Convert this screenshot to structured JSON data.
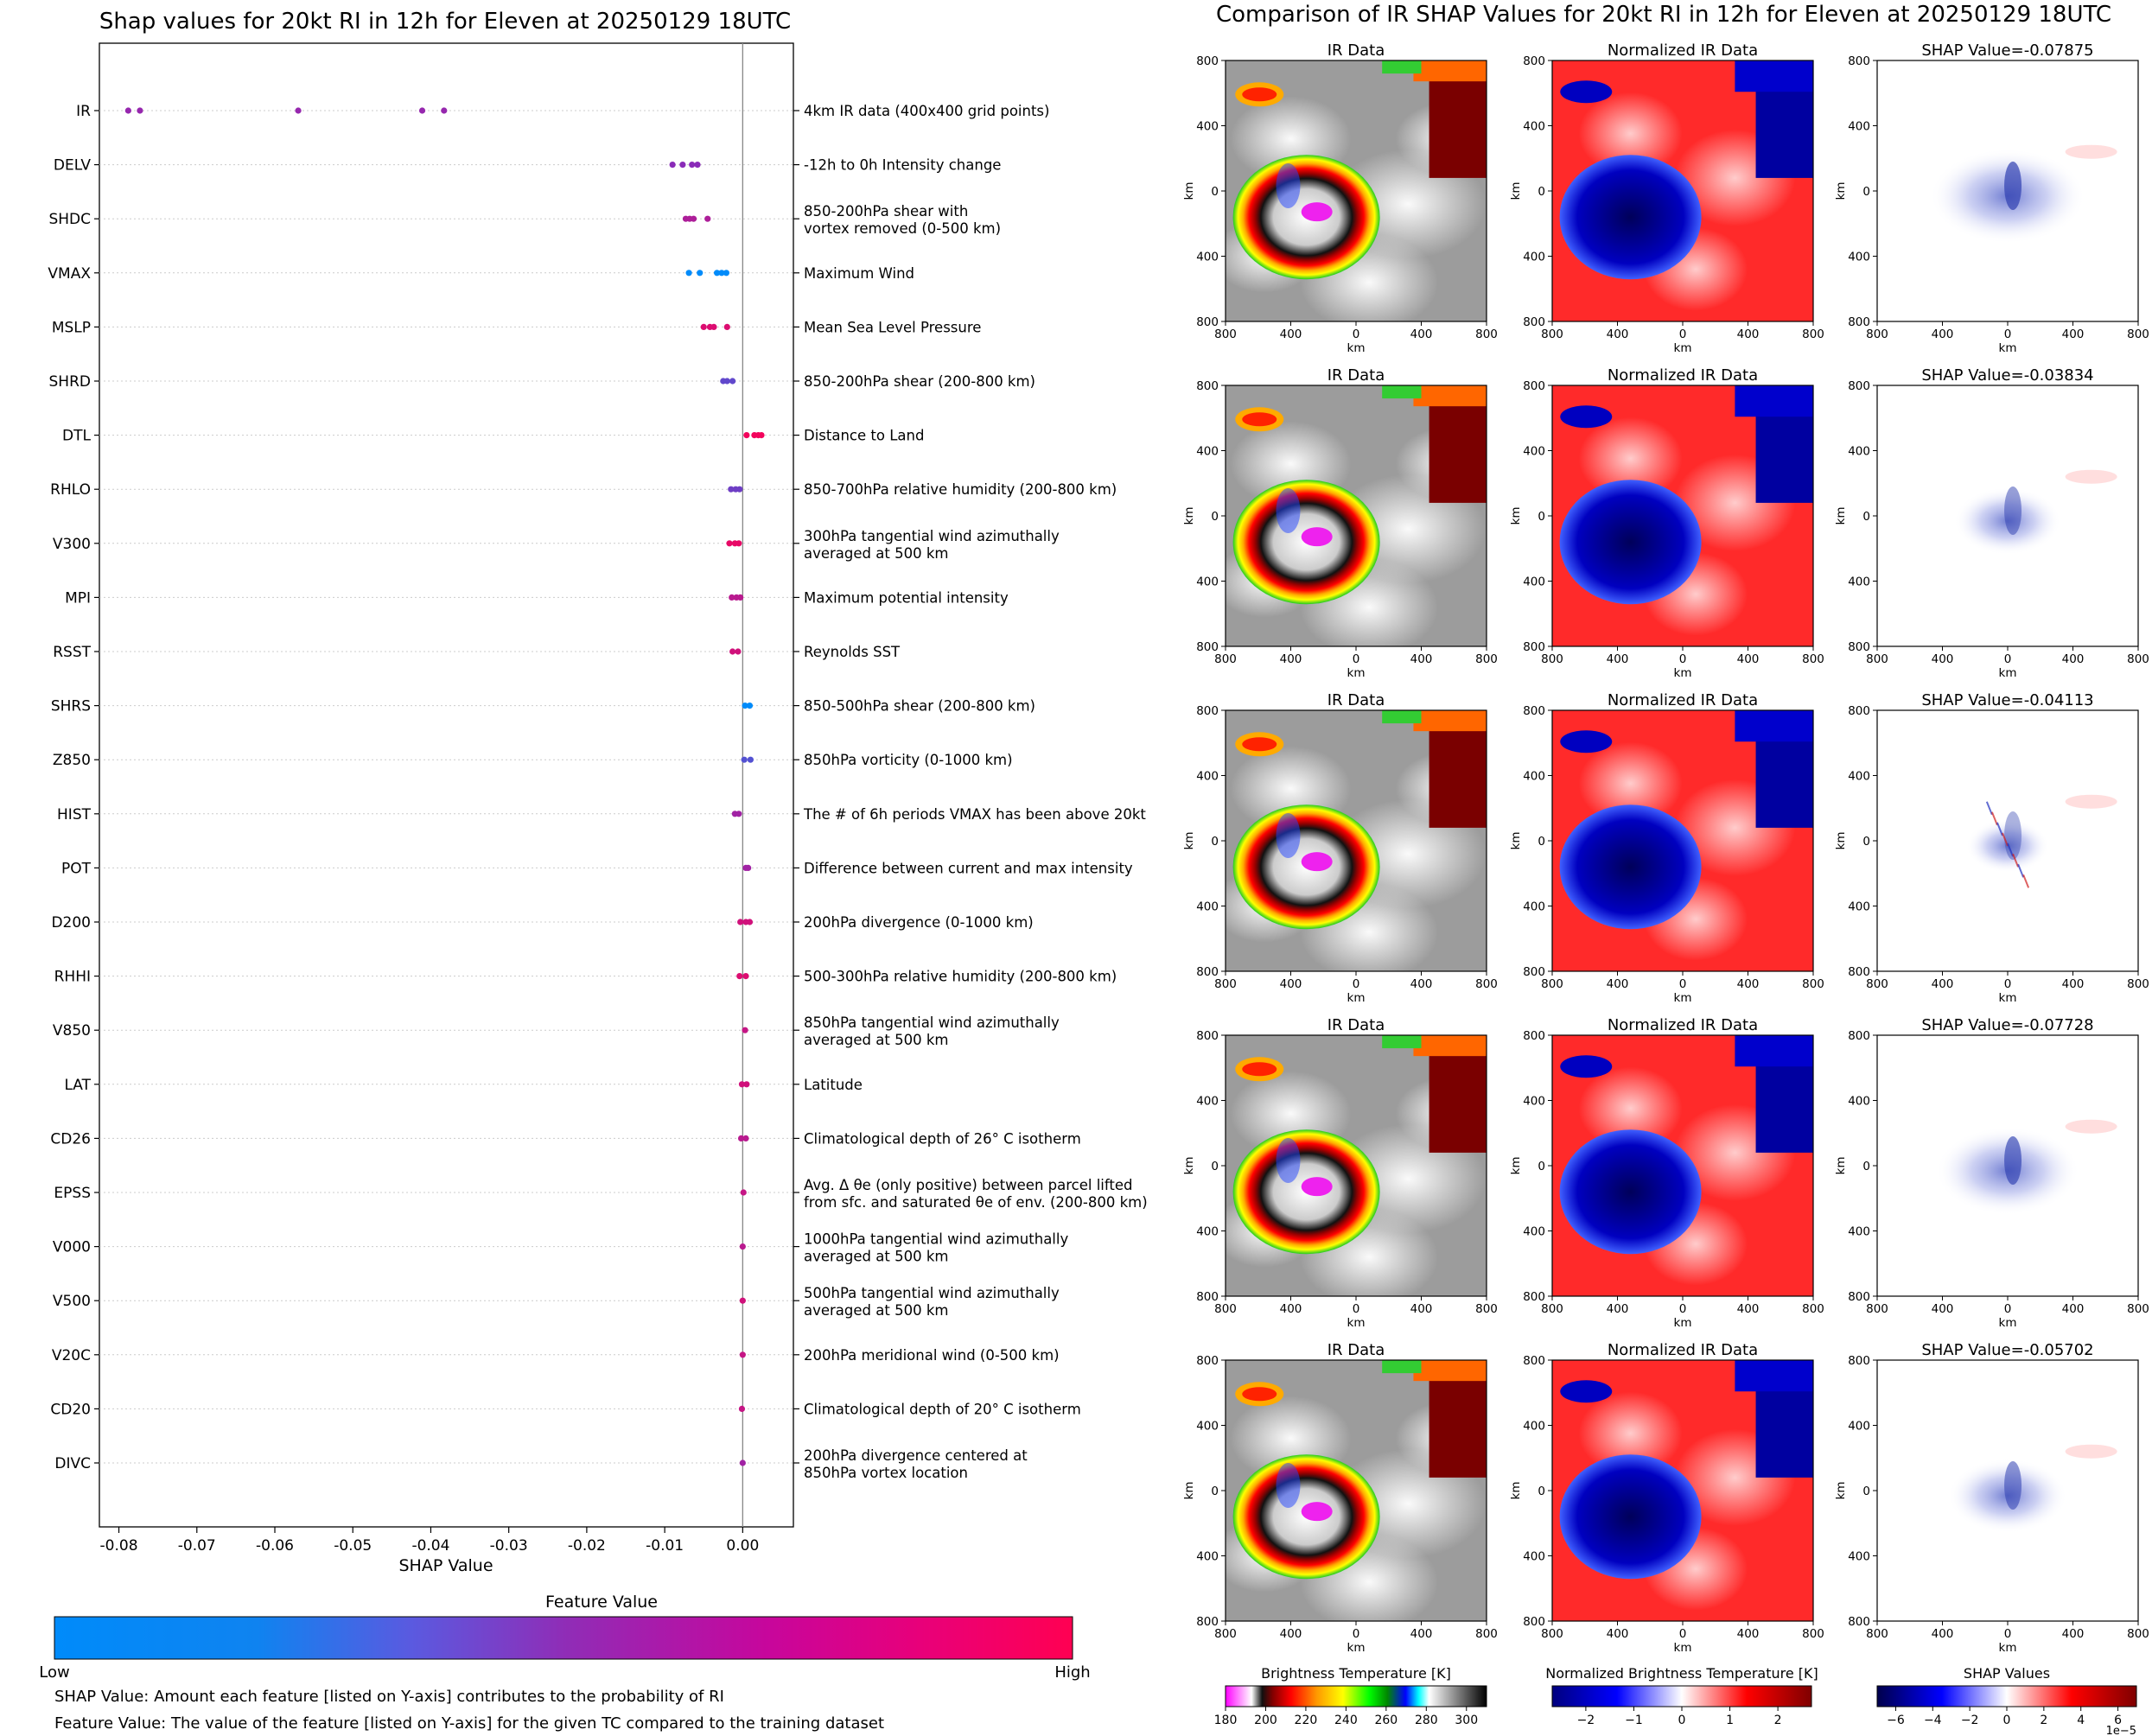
{
  "left_title": "Shap values for 20kt RI in 12h for Eleven at 20250129 18UTC",
  "right_title": "Comparison of IR SHAP Values for 20kt RI in 12h for Eleven at 20250129 18UTC",
  "colors": {
    "low": "#008bfa",
    "mid": "#8a2bb8",
    "high": "#ff0052"
  },
  "colorbar": {
    "title": "Feature Value",
    "low": "Low",
    "high": "High"
  },
  "notes": [
    "SHAP Value: Amount each feature [listed on Y-axis] contributes to the probability of RI",
    "Feature Value: The value of the feature [listed on Y-axis] for the given TC compared to the training dataset"
  ],
  "chart_data": [
    {
      "type": "scatter",
      "title": "Shap values for 20kt RI in 12h for Eleven at 20250129 18UTC",
      "xlabel": "SHAP Value",
      "xlim": [
        -0.0825,
        0.0065
      ],
      "xticks": [
        "-0.08",
        "-0.07",
        "-0.06",
        "-0.05",
        "-0.04",
        "-0.03",
        "-0.02",
        "-0.01",
        "0.00"
      ],
      "xtick_values": [
        -0.08,
        -0.07,
        -0.06,
        -0.05,
        -0.04,
        -0.03,
        -0.02,
        -0.01,
        0.0
      ],
      "features": [
        {
          "name": "IR",
          "desc": [
            "4km IR data (400x400 grid points)"
          ],
          "points": [
            [
              -0.0788,
              0.55
            ],
            [
              -0.0773,
              0.55
            ],
            [
              -0.057,
              0.55
            ],
            [
              -0.0411,
              0.55
            ],
            [
              -0.0383,
              0.55
            ]
          ]
        },
        {
          "name": "DELV",
          "desc": [
            "-12h to 0h Intensity change"
          ],
          "points": [
            [
              -0.009,
              0.5
            ],
            [
              -0.0077,
              0.5
            ],
            [
              -0.0065,
              0.5
            ],
            [
              -0.0058,
              0.5
            ]
          ]
        },
        {
          "name": "SHDC",
          "desc": [
            "850-200hPa shear with",
            "vortex removed (0-500 km)"
          ],
          "points": [
            [
              -0.0073,
              0.65
            ],
            [
              -0.0068,
              0.65
            ],
            [
              -0.0063,
              0.65
            ],
            [
              -0.0045,
              0.65
            ]
          ]
        },
        {
          "name": "VMAX",
          "desc": [
            "Maximum Wind"
          ],
          "points": [
            [
              -0.0069,
              0.0
            ],
            [
              -0.0055,
              0.0
            ],
            [
              -0.0033,
              0.0
            ],
            [
              -0.0027,
              0.0
            ],
            [
              -0.0021,
              0.0
            ]
          ]
        },
        {
          "name": "MSLP",
          "desc": [
            "Mean Sea Level Pressure"
          ],
          "points": [
            [
              -0.005,
              0.85
            ],
            [
              -0.0042,
              0.85
            ],
            [
              -0.0037,
              0.85
            ],
            [
              -0.002,
              0.85
            ]
          ]
        },
        {
          "name": "SHRD",
          "desc": [
            "850-200hPa shear (200-800 km)"
          ],
          "points": [
            [
              -0.0025,
              0.35
            ],
            [
              -0.002,
              0.35
            ],
            [
              -0.0013,
              0.35
            ]
          ]
        },
        {
          "name": "DTL",
          "desc": [
            "Distance to Land"
          ],
          "points": [
            [
              0.0005,
              0.95
            ],
            [
              0.0015,
              0.95
            ],
            [
              0.002,
              0.95
            ],
            [
              0.0024,
              0.95
            ]
          ]
        },
        {
          "name": "RHLO",
          "desc": [
            "850-700hPa relative humidity (200-800 km)"
          ],
          "points": [
            [
              -0.0015,
              0.4
            ],
            [
              -0.0009,
              0.4
            ],
            [
              -0.0004,
              0.4
            ]
          ]
        },
        {
          "name": "V300",
          "desc": [
            "300hPa tangential wind azimuthally",
            "averaged at 500 km"
          ],
          "points": [
            [
              -0.0017,
              0.9
            ],
            [
              -0.001,
              0.9
            ],
            [
              -0.0005,
              0.9
            ]
          ]
        },
        {
          "name": "MPI",
          "desc": [
            "Maximum potential intensity"
          ],
          "points": [
            [
              -0.0014,
              0.7
            ],
            [
              -0.0008,
              0.7
            ],
            [
              -0.0003,
              0.7
            ]
          ]
        },
        {
          "name": "RSST",
          "desc": [
            "Reynolds SST"
          ],
          "points": [
            [
              -0.0013,
              0.8
            ],
            [
              -0.0006,
              0.8
            ]
          ]
        },
        {
          "name": "SHRS",
          "desc": [
            "850-500hPa shear (200-800 km)"
          ],
          "points": [
            [
              0.0003,
              0.0
            ],
            [
              0.0009,
              0.0
            ]
          ]
        },
        {
          "name": "Z850",
          "desc": [
            "850hPa vorticity (0-1000 km)"
          ],
          "points": [
            [
              0.0002,
              0.3
            ],
            [
              0.001,
              0.3
            ]
          ]
        },
        {
          "name": "HIST",
          "desc": [
            "The # of 6h periods VMAX has been above 20kt"
          ],
          "points": [
            [
              -0.001,
              0.6
            ],
            [
              -0.0005,
              0.6
            ]
          ]
        },
        {
          "name": "POT",
          "desc": [
            "Difference between current and max intensity"
          ],
          "points": [
            [
              0.0004,
              0.6
            ],
            [
              0.0007,
              0.6
            ]
          ]
        },
        {
          "name": "D200",
          "desc": [
            "200hPa divergence (0-1000 km)"
          ],
          "points": [
            [
              -0.0003,
              0.8
            ],
            [
              0.0004,
              0.8
            ],
            [
              0.0009,
              0.8
            ]
          ]
        },
        {
          "name": "RHHI",
          "desc": [
            "500-300hPa relative humidity (200-800 km)"
          ],
          "points": [
            [
              -0.0004,
              0.85
            ],
            [
              0.0004,
              0.85
            ]
          ]
        },
        {
          "name": "V850",
          "desc": [
            "850hPa tangential wind azimuthally",
            "averaged at 500 km"
          ],
          "points": [
            [
              0.0003,
              0.75
            ]
          ]
        },
        {
          "name": "LAT",
          "desc": [
            "Latitude"
          ],
          "points": [
            [
              -0.0001,
              0.8
            ],
            [
              0.0005,
              0.8
            ]
          ]
        },
        {
          "name": "CD26",
          "desc": [
            "Climatological depth of 26° C isotherm"
          ],
          "points": [
            [
              -0.0002,
              0.7
            ],
            [
              0.0004,
              0.7
            ]
          ]
        },
        {
          "name": "EPSS",
          "desc": [
            "Avg. Δ θe (only positive) between parcel lifted",
            "from sfc. and saturated θe of env. (200-800 km)"
          ],
          "points": [
            [
              0.0001,
              0.75
            ]
          ]
        },
        {
          "name": "V000",
          "desc": [
            "1000hPa tangential wind azimuthally",
            "averaged at 500 km"
          ],
          "points": [
            [
              0.0,
              0.7
            ]
          ]
        },
        {
          "name": "V500",
          "desc": [
            "500hPa tangential wind azimuthally",
            "averaged at 500 km"
          ],
          "points": [
            [
              0.0,
              0.8
            ]
          ]
        },
        {
          "name": "V20C",
          "desc": [
            "200hPa meridional wind (0-500 km)"
          ],
          "points": [
            [
              0.0,
              0.75
            ]
          ]
        },
        {
          "name": "CD20",
          "desc": [
            "Climatological depth of 20° C isotherm"
          ],
          "points": [
            [
              -0.0001,
              0.75
            ]
          ]
        },
        {
          "name": "DIVC",
          "desc": [
            "200hPa divergence centered at",
            "850hPa vortex location"
          ],
          "points": [
            [
              0.0,
              0.6
            ]
          ]
        }
      ]
    },
    {
      "type": "heatmap",
      "title": "Comparison of IR SHAP Values for 20kt RI in 12h for Eleven at 20250129 18UTC",
      "panel_titles": [
        "IR Data",
        "Normalized IR Data"
      ],
      "shap_titles": [
        "SHAP Value=-0.07875",
        "SHAP Value=-0.03834",
        "SHAP Value=-0.04113",
        "SHAP Value=-0.07728",
        "SHAP Value=-0.05702"
      ],
      "xlabel": "km",
      "ylabel": "km",
      "ticks": [
        "800",
        "400",
        "0",
        "400",
        "800"
      ],
      "colorbars": [
        {
          "title": "Brightness Temperature [K]",
          "ticks": [
            "180",
            "200",
            "220",
            "240",
            "260",
            "280",
            "300"
          ],
          "range": [
            180,
            310
          ]
        },
        {
          "title": "Normalized Brightness Temperature [K]",
          "ticks": [
            "−2",
            "−1",
            "0",
            "1",
            "2"
          ],
          "range": [
            -2.7,
            2.7
          ]
        },
        {
          "title": "SHAP Values",
          "ticks": [
            "−6",
            "−4",
            "−2",
            "0",
            "2",
            "4",
            "6"
          ],
          "range": [
            -7,
            7
          ],
          "multiplier": "1e−5"
        }
      ]
    }
  ]
}
